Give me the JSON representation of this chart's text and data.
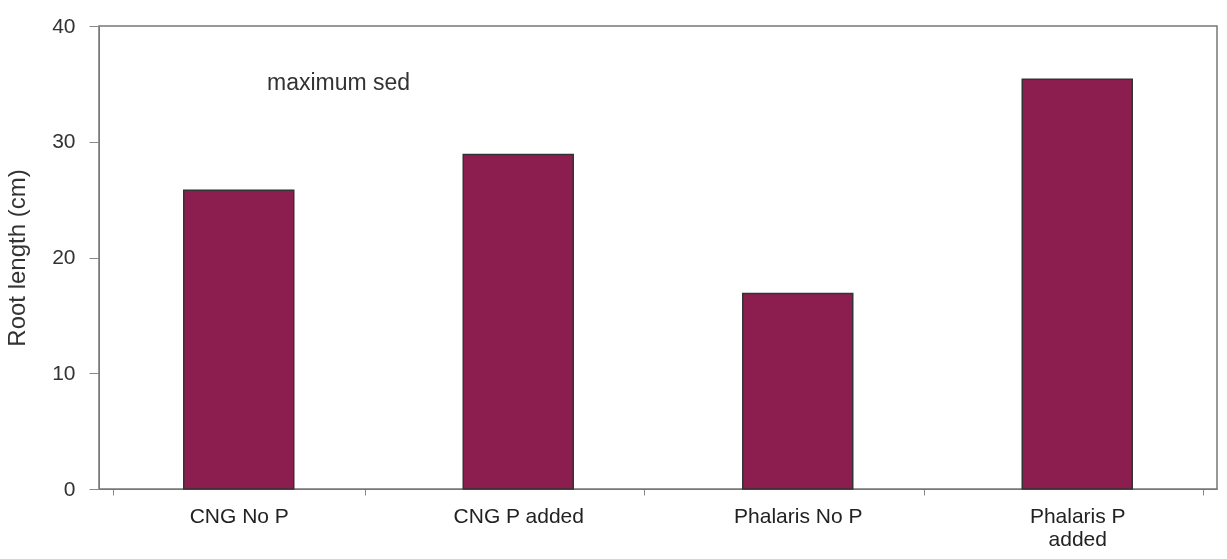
{
  "chart_data": {
    "type": "bar",
    "categories": [
      "CNG No P",
      "CNG P added",
      "Phalaris No P",
      "Phalaris P added"
    ],
    "values": [
      25.8,
      28.9,
      16.9,
      35.4
    ],
    "color": "#8c1d4f",
    "ylabel": "Root length (cm)",
    "ylim": [
      0,
      40
    ],
    "yticks": [
      0,
      10,
      20,
      30,
      40
    ],
    "annotations": [
      "maximum sed"
    ],
    "grid": false
  }
}
